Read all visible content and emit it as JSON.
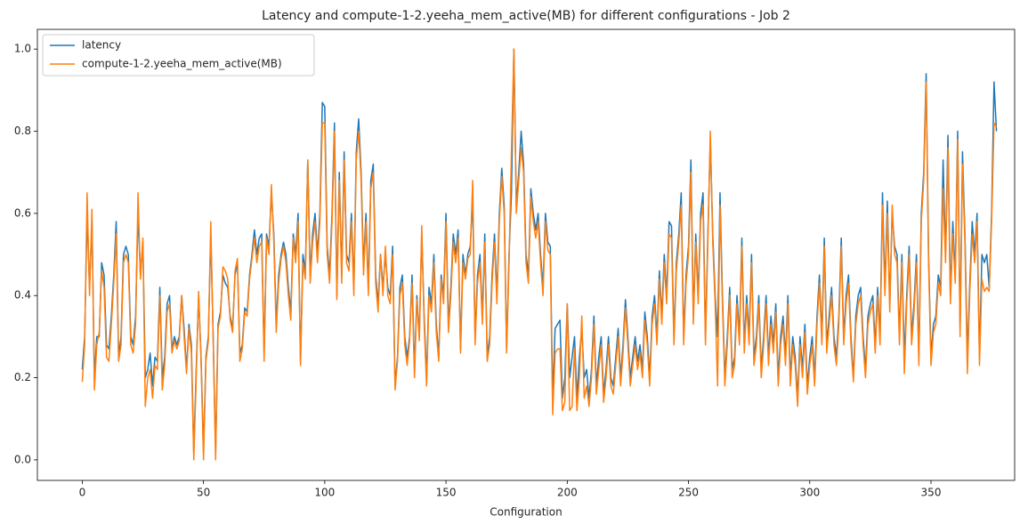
{
  "chart_data": {
    "type": "line",
    "title": "Latency and compute-1-2.yeeha_mem_active(MB) for different configurations - Job 2",
    "x_label": "Configuration",
    "legend": "upper left",
    "xlim": [
      -18.5,
      384.5
    ],
    "ylim": [
      -0.05,
      1.048
    ],
    "xticks": [
      0,
      50,
      100,
      150,
      200,
      250,
      300,
      350
    ],
    "yticks": [
      {
        "value": 0,
        "label": "0.0"
      },
      0.2,
      0.4,
      0.6,
      0.8,
      {
        "value": 1,
        "label": "1.0"
      }
    ],
    "series": [
      {
        "name": "latency",
        "color": "#1f77b4",
        "values": [
          0.22,
          0.3,
          0.6,
          0.42,
          0.58,
          0.2,
          0.3,
          0.3,
          0.48,
          0.45,
          0.28,
          0.27,
          0.35,
          0.45,
          0.58,
          0.25,
          0.3,
          0.5,
          0.52,
          0.5,
          0.3,
          0.28,
          0.35,
          0.6,
          0.45,
          0.53,
          0.2,
          0.22,
          0.26,
          0.18,
          0.25,
          0.24,
          0.42,
          0.2,
          0.25,
          0.38,
          0.4,
          0.27,
          0.3,
          0.28,
          0.3,
          0.4,
          0.32,
          0.22,
          0.33,
          0.28,
          0.02,
          0.22,
          0.4,
          0.25,
          0.02,
          0.25,
          0.3,
          0.55,
          0.3,
          0.02,
          0.33,
          0.36,
          0.45,
          0.43,
          0.42,
          0.35,
          0.32,
          0.45,
          0.48,
          0.26,
          0.28,
          0.37,
          0.36,
          0.45,
          0.5,
          0.56,
          0.5,
          0.54,
          0.55,
          0.26,
          0.55,
          0.52,
          0.65,
          0.55,
          0.33,
          0.45,
          0.5,
          0.53,
          0.5,
          0.42,
          0.36,
          0.55,
          0.5,
          0.6,
          0.24,
          0.5,
          0.46,
          0.73,
          0.45,
          0.55,
          0.6,
          0.5,
          0.6,
          0.87,
          0.86,
          0.52,
          0.45,
          0.6,
          0.82,
          0.4,
          0.7,
          0.45,
          0.75,
          0.5,
          0.48,
          0.6,
          0.42,
          0.75,
          0.83,
          0.7,
          0.47,
          0.6,
          0.42,
          0.68,
          0.72,
          0.45,
          0.38,
          0.5,
          0.42,
          0.5,
          0.42,
          0.4,
          0.52,
          0.18,
          0.25,
          0.42,
          0.45,
          0.3,
          0.25,
          0.3,
          0.45,
          0.22,
          0.4,
          0.3,
          0.55,
          0.35,
          0.2,
          0.42,
          0.38,
          0.5,
          0.33,
          0.25,
          0.45,
          0.4,
          0.6,
          0.33,
          0.42,
          0.55,
          0.5,
          0.56,
          0.27,
          0.5,
          0.45,
          0.5,
          0.52,
          0.63,
          0.3,
          0.45,
          0.5,
          0.35,
          0.55,
          0.25,
          0.3,
          0.45,
          0.55,
          0.4,
          0.6,
          0.71,
          0.62,
          0.27,
          0.5,
          0.65,
          1.0,
          0.62,
          0.7,
          0.8,
          0.72,
          0.5,
          0.45,
          0.66,
          0.6,
          0.56,
          0.6,
          0.5,
          0.42,
          0.6,
          0.53,
          0.52,
          0.15,
          0.32,
          0.33,
          0.34,
          0.15,
          0.2,
          0.38,
          0.2,
          0.25,
          0.3,
          0.15,
          0.25,
          0.32,
          0.2,
          0.22,
          0.15,
          0.22,
          0.35,
          0.18,
          0.25,
          0.3,
          0.16,
          0.22,
          0.3,
          0.2,
          0.18,
          0.25,
          0.32,
          0.2,
          0.28,
          0.39,
          0.3,
          0.2,
          0.25,
          0.3,
          0.24,
          0.28,
          0.22,
          0.36,
          0.3,
          0.2,
          0.35,
          0.4,
          0.3,
          0.46,
          0.35,
          0.5,
          0.4,
          0.58,
          0.57,
          0.3,
          0.48,
          0.55,
          0.65,
          0.3,
          0.45,
          0.52,
          0.73,
          0.35,
          0.55,
          0.4,
          0.6,
          0.65,
          0.3,
          0.55,
          0.78,
          0.55,
          0.4,
          0.3,
          0.65,
          0.4,
          0.2,
          0.3,
          0.42,
          0.22,
          0.25,
          0.4,
          0.3,
          0.54,
          0.28,
          0.4,
          0.3,
          0.5,
          0.25,
          0.3,
          0.4,
          0.22,
          0.3,
          0.4,
          0.25,
          0.35,
          0.28,
          0.38,
          0.2,
          0.3,
          0.35,
          0.25,
          0.4,
          0.2,
          0.3,
          0.25,
          0.15,
          0.3,
          0.22,
          0.33,
          0.18,
          0.25,
          0.3,
          0.2,
          0.35,
          0.45,
          0.3,
          0.54,
          0.28,
          0.35,
          0.42,
          0.3,
          0.25,
          0.35,
          0.54,
          0.3,
          0.4,
          0.45,
          0.3,
          0.2,
          0.35,
          0.4,
          0.42,
          0.3,
          0.22,
          0.35,
          0.38,
          0.4,
          0.28,
          0.42,
          0.3,
          0.65,
          0.42,
          0.63,
          0.38,
          0.6,
          0.52,
          0.5,
          0.3,
          0.5,
          0.25,
          0.4,
          0.52,
          0.3,
          0.38,
          0.5,
          0.25,
          0.6,
          0.7,
          0.94,
          0.5,
          0.25,
          0.33,
          0.35,
          0.45,
          0.42,
          0.73,
          0.5,
          0.79,
          0.4,
          0.58,
          0.45,
          0.8,
          0.32,
          0.75,
          0.55,
          0.25,
          0.43,
          0.58,
          0.5,
          0.6,
          0.25,
          0.5,
          0.48,
          0.5,
          0.42,
          0.6,
          0.92,
          0.8
        ]
      },
      {
        "name": "compute-1-2.yeeha_mem_active(MB)",
        "color": "#ff7f0e",
        "values": [
          0.19,
          0.28,
          0.65,
          0.4,
          0.61,
          0.17,
          0.28,
          0.31,
          0.46,
          0.42,
          0.25,
          0.24,
          0.33,
          0.43,
          0.55,
          0.24,
          0.28,
          0.48,
          0.5,
          0.48,
          0.28,
          0.26,
          0.33,
          0.65,
          0.44,
          0.54,
          0.13,
          0.2,
          0.22,
          0.15,
          0.23,
          0.22,
          0.4,
          0.17,
          0.23,
          0.36,
          0.38,
          0.26,
          0.29,
          0.27,
          0.29,
          0.4,
          0.3,
          0.21,
          0.32,
          0.26,
          0.0,
          0.2,
          0.41,
          0.24,
          0.0,
          0.24,
          0.29,
          0.58,
          0.29,
          0.0,
          0.32,
          0.35,
          0.47,
          0.46,
          0.44,
          0.34,
          0.31,
          0.46,
          0.49,
          0.24,
          0.27,
          0.36,
          0.35,
          0.44,
          0.49,
          0.54,
          0.48,
          0.52,
          0.53,
          0.24,
          0.54,
          0.5,
          0.67,
          0.53,
          0.31,
          0.43,
          0.49,
          0.52,
          0.48,
          0.4,
          0.34,
          0.54,
          0.48,
          0.58,
          0.23,
          0.48,
          0.44,
          0.73,
          0.43,
          0.53,
          0.58,
          0.48,
          0.58,
          0.82,
          0.82,
          0.5,
          0.43,
          0.58,
          0.8,
          0.39,
          0.68,
          0.43,
          0.73,
          0.48,
          0.46,
          0.58,
          0.4,
          0.73,
          0.8,
          0.68,
          0.45,
          0.58,
          0.4,
          0.66,
          0.7,
          0.43,
          0.36,
          0.5,
          0.4,
          0.52,
          0.4,
          0.38,
          0.5,
          0.17,
          0.24,
          0.4,
          0.43,
          0.28,
          0.23,
          0.29,
          0.43,
          0.2,
          0.39,
          0.29,
          0.57,
          0.33,
          0.18,
          0.4,
          0.36,
          0.48,
          0.31,
          0.24,
          0.44,
          0.38,
          0.58,
          0.31,
          0.4,
          0.53,
          0.48,
          0.54,
          0.26,
          0.48,
          0.44,
          0.49,
          0.5,
          0.68,
          0.28,
          0.43,
          0.48,
          0.33,
          0.53,
          0.24,
          0.28,
          0.43,
          0.53,
          0.38,
          0.58,
          0.69,
          0.6,
          0.26,
          0.48,
          0.75,
          1.0,
          0.6,
          0.68,
          0.76,
          0.7,
          0.48,
          0.43,
          0.64,
          0.58,
          0.54,
          0.58,
          0.48,
          0.4,
          0.58,
          0.51,
          0.5,
          0.11,
          0.26,
          0.27,
          0.27,
          0.12,
          0.14,
          0.38,
          0.12,
          0.13,
          0.27,
          0.12,
          0.2,
          0.35,
          0.15,
          0.18,
          0.13,
          0.2,
          0.33,
          0.16,
          0.22,
          0.28,
          0.14,
          0.2,
          0.28,
          0.18,
          0.16,
          0.23,
          0.3,
          0.18,
          0.26,
          0.37,
          0.28,
          0.18,
          0.23,
          0.28,
          0.22,
          0.26,
          0.2,
          0.34,
          0.28,
          0.18,
          0.33,
          0.38,
          0.28,
          0.44,
          0.33,
          0.48,
          0.38,
          0.55,
          0.54,
          0.28,
          0.46,
          0.53,
          0.62,
          0.28,
          0.43,
          0.5,
          0.7,
          0.33,
          0.53,
          0.38,
          0.58,
          0.62,
          0.28,
          0.53,
          0.8,
          0.53,
          0.38,
          0.18,
          0.62,
          0.38,
          0.18,
          0.28,
          0.4,
          0.2,
          0.23,
          0.38,
          0.28,
          0.52,
          0.26,
          0.38,
          0.28,
          0.48,
          0.23,
          0.28,
          0.38,
          0.2,
          0.28,
          0.38,
          0.23,
          0.33,
          0.26,
          0.36,
          0.18,
          0.28,
          0.33,
          0.23,
          0.38,
          0.18,
          0.28,
          0.23,
          0.13,
          0.28,
          0.2,
          0.31,
          0.16,
          0.23,
          0.28,
          0.18,
          0.33,
          0.43,
          0.28,
          0.52,
          0.26,
          0.33,
          0.4,
          0.28,
          0.23,
          0.33,
          0.52,
          0.28,
          0.38,
          0.43,
          0.28,
          0.19,
          0.33,
          0.38,
          0.4,
          0.28,
          0.2,
          0.33,
          0.36,
          0.38,
          0.26,
          0.4,
          0.28,
          0.62,
          0.4,
          0.6,
          0.36,
          0.62,
          0.5,
          0.48,
          0.28,
          0.48,
          0.21,
          0.38,
          0.5,
          0.28,
          0.36,
          0.48,
          0.23,
          0.58,
          0.68,
          0.92,
          0.48,
          0.23,
          0.31,
          0.33,
          0.43,
          0.4,
          0.66,
          0.48,
          0.76,
          0.38,
          0.55,
          0.43,
          0.78,
          0.3,
          0.72,
          0.53,
          0.21,
          0.41,
          0.55,
          0.48,
          0.58,
          0.23,
          0.44,
          0.41,
          0.42,
          0.41,
          0.58,
          0.82,
          0.81
        ]
      }
    ]
  }
}
